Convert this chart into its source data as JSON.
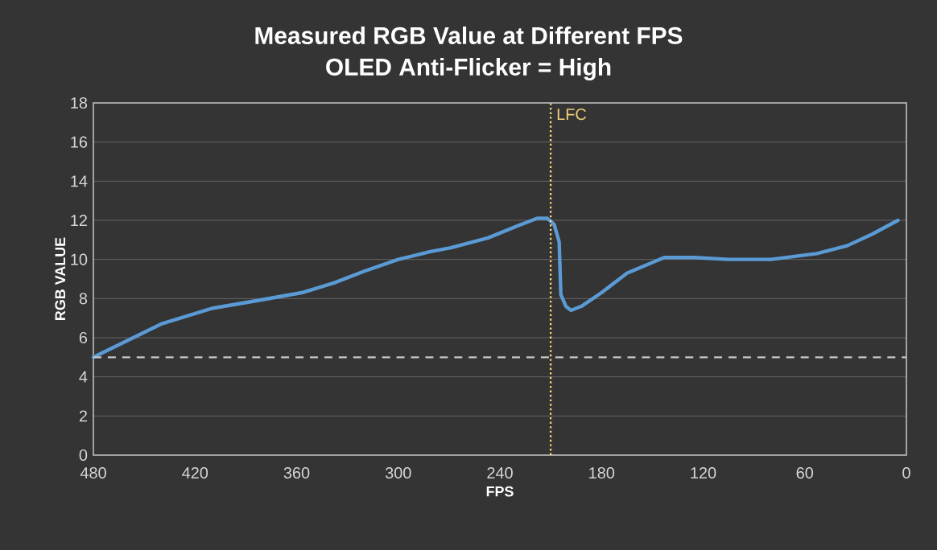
{
  "chart_data": {
    "type": "line",
    "title": "Measured RGB Value at Different FPS",
    "subtitle": "OLED Anti-Flicker = High",
    "xlabel": "FPS",
    "ylabel": "RGB VALUE",
    "x": [
      480,
      440,
      410,
      383,
      357,
      338,
      320,
      300,
      281,
      269,
      247,
      230,
      218,
      212,
      208,
      205,
      204,
      201,
      198,
      192,
      180,
      165,
      143,
      125,
      105,
      80,
      53,
      35,
      20,
      5
    ],
    "series": [
      {
        "color": "#5b9bd5",
        "values": [
          5.0,
          6.7,
          7.5,
          7.9,
          8.3,
          8.8,
          9.4,
          10.0,
          10.4,
          10.6,
          11.1,
          11.7,
          12.1,
          12.1,
          11.8,
          10.9,
          8.2,
          7.6,
          7.4,
          7.6,
          8.3,
          9.3,
          10.1,
          10.1,
          10.0,
          10.0,
          10.3,
          10.7,
          11.3,
          12.0
        ]
      }
    ],
    "xlim": [
      480,
      0
    ],
    "xticks": [
      480,
      420,
      360,
      300,
      240,
      180,
      120,
      60,
      0
    ],
    "ylim": [
      0,
      18
    ],
    "yticks": [
      0,
      2,
      4,
      6,
      8,
      10,
      12,
      14,
      16,
      18
    ],
    "grid": "y",
    "ref_lines": [
      {
        "axis": "y",
        "value": 5,
        "color": "#c8c8c8",
        "line_style": "dashed"
      },
      {
        "axis": "x",
        "value": 210,
        "label": "LFC",
        "color": "#f2d27a",
        "line_style": "dotted"
      }
    ]
  }
}
